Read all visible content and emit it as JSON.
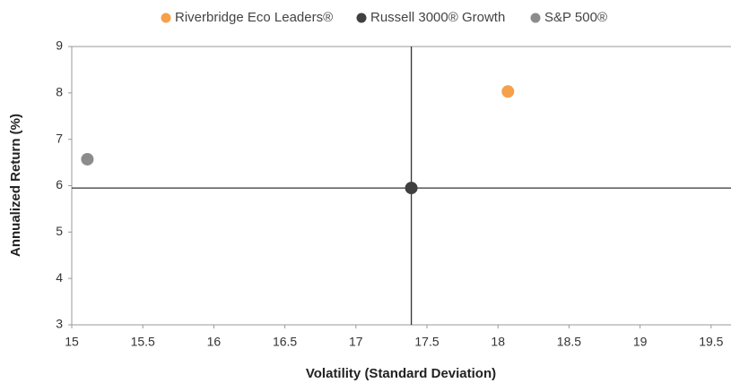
{
  "chart_data": {
    "type": "scatter",
    "x_label": "Volatility (Standard Deviation)",
    "y_label": "Annualized Return (%)",
    "series": [
      {
        "name": "Riverbridge Eco Leaders®",
        "color": "#f5a04a",
        "x": [
          18.07
        ],
        "values": [
          8.03
        ]
      },
      {
        "name": "Russell 3000® Growth",
        "color": "#404040",
        "x": [
          17.39
        ],
        "values": [
          5.95
        ]
      },
      {
        "name": "S&P 500®",
        "color": "#8c8c8c",
        "x": [
          15.11
        ],
        "values": [
          6.57
        ]
      }
    ],
    "xlim": [
      15,
      19.64
    ],
    "xticks": [
      15,
      15.5,
      16,
      16.5,
      17,
      17.5,
      18,
      18.5,
      19,
      19.5
    ],
    "ylim": [
      3,
      9
    ],
    "yticks": [
      3,
      4,
      5,
      6,
      7,
      8,
      9
    ],
    "legend": "top"
  }
}
